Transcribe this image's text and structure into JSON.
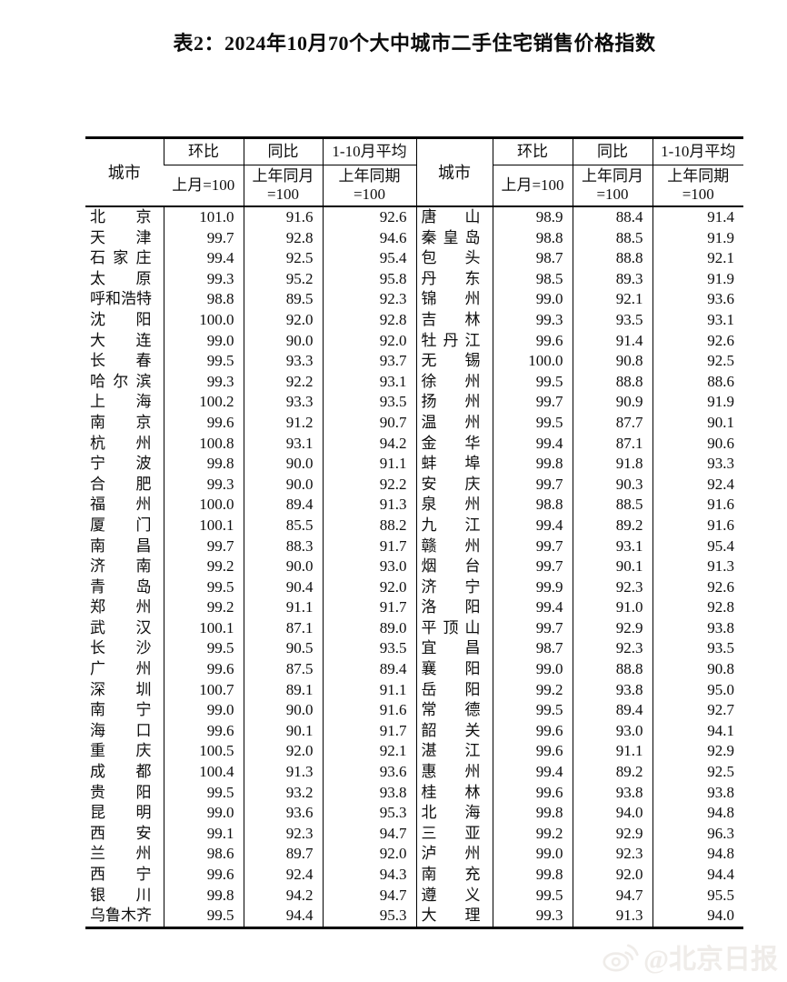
{
  "title": "表2：2024年10月70个大中城市二手住宅销售价格指数",
  "table": {
    "headers": {
      "city": "城市",
      "mom": "环比",
      "mom_base": "上月=100",
      "yoy": "同比",
      "yoy_base_l1": "上年同月",
      "yoy_base_l2": "=100",
      "avg": "1-10月平均",
      "avg_base_l1": "上年同期",
      "avg_base_l2": "=100"
    },
    "left_rows": [
      [
        "北京",
        "101.0",
        "91.6",
        "92.6"
      ],
      [
        "天津",
        "99.7",
        "92.8",
        "94.6"
      ],
      [
        "石家庄",
        "99.4",
        "92.5",
        "95.4"
      ],
      [
        "太原",
        "99.3",
        "95.2",
        "95.8"
      ],
      [
        "呼和浩特",
        "98.8",
        "89.5",
        "92.3"
      ],
      [
        "沈阳",
        "100.0",
        "92.0",
        "92.8"
      ],
      [
        "大连",
        "99.0",
        "90.0",
        "92.0"
      ],
      [
        "长春",
        "99.5",
        "93.3",
        "93.7"
      ],
      [
        "哈尔滨",
        "99.3",
        "92.2",
        "93.1"
      ],
      [
        "上海",
        "100.2",
        "93.3",
        "93.5"
      ],
      [
        "南京",
        "99.6",
        "91.2",
        "90.7"
      ],
      [
        "杭州",
        "100.8",
        "93.1",
        "94.2"
      ],
      [
        "宁波",
        "99.8",
        "90.0",
        "91.1"
      ],
      [
        "合肥",
        "99.3",
        "90.0",
        "92.2"
      ],
      [
        "福州",
        "100.0",
        "89.4",
        "91.3"
      ],
      [
        "厦门",
        "100.1",
        "85.5",
        "88.2"
      ],
      [
        "南昌",
        "99.7",
        "88.3",
        "91.7"
      ],
      [
        "济南",
        "99.2",
        "90.0",
        "93.0"
      ],
      [
        "青岛",
        "99.5",
        "90.4",
        "92.0"
      ],
      [
        "郑州",
        "99.2",
        "91.1",
        "91.7"
      ],
      [
        "武汉",
        "100.1",
        "87.1",
        "89.0"
      ],
      [
        "长沙",
        "99.5",
        "90.5",
        "93.5"
      ],
      [
        "广州",
        "99.6",
        "87.5",
        "89.4"
      ],
      [
        "深圳",
        "100.7",
        "89.1",
        "91.1"
      ],
      [
        "南宁",
        "99.0",
        "90.0",
        "91.6"
      ],
      [
        "海口",
        "99.6",
        "90.1",
        "91.7"
      ],
      [
        "重庆",
        "100.5",
        "92.0",
        "92.1"
      ],
      [
        "成都",
        "100.4",
        "91.3",
        "93.6"
      ],
      [
        "贵阳",
        "99.5",
        "93.2",
        "93.8"
      ],
      [
        "昆明",
        "99.0",
        "93.6",
        "95.3"
      ],
      [
        "西安",
        "99.1",
        "92.3",
        "94.7"
      ],
      [
        "兰州",
        "98.6",
        "89.7",
        "92.0"
      ],
      [
        "西宁",
        "99.6",
        "92.4",
        "94.3"
      ],
      [
        "银川",
        "99.8",
        "94.2",
        "94.7"
      ],
      [
        "乌鲁木齐",
        "99.5",
        "94.4",
        "95.3"
      ]
    ],
    "right_rows": [
      [
        "唐山",
        "98.9",
        "88.4",
        "91.4"
      ],
      [
        "秦皇岛",
        "98.8",
        "88.5",
        "91.9"
      ],
      [
        "包头",
        "98.7",
        "88.8",
        "92.1"
      ],
      [
        "丹东",
        "98.5",
        "89.3",
        "91.9"
      ],
      [
        "锦州",
        "99.0",
        "92.1",
        "93.6"
      ],
      [
        "吉林",
        "99.3",
        "93.5",
        "93.1"
      ],
      [
        "牡丹江",
        "99.6",
        "91.4",
        "92.6"
      ],
      [
        "无锡",
        "100.0",
        "90.8",
        "92.5"
      ],
      [
        "徐州",
        "99.5",
        "88.8",
        "88.6"
      ],
      [
        "扬州",
        "99.7",
        "90.9",
        "91.9"
      ],
      [
        "温州",
        "99.5",
        "87.7",
        "90.1"
      ],
      [
        "金华",
        "99.4",
        "87.1",
        "90.6"
      ],
      [
        "蚌埠",
        "99.8",
        "91.8",
        "93.3"
      ],
      [
        "安庆",
        "99.7",
        "90.3",
        "92.4"
      ],
      [
        "泉州",
        "98.8",
        "88.5",
        "91.6"
      ],
      [
        "九江",
        "99.4",
        "89.2",
        "91.6"
      ],
      [
        "赣州",
        "99.7",
        "93.1",
        "95.4"
      ],
      [
        "烟台",
        "99.7",
        "90.1",
        "91.3"
      ],
      [
        "济宁",
        "99.9",
        "92.3",
        "92.6"
      ],
      [
        "洛阳",
        "99.4",
        "91.0",
        "92.8"
      ],
      [
        "平顶山",
        "99.7",
        "92.9",
        "93.8"
      ],
      [
        "宜昌",
        "98.7",
        "92.3",
        "93.5"
      ],
      [
        "襄阳",
        "99.0",
        "88.8",
        "90.8"
      ],
      [
        "岳阳",
        "99.2",
        "93.8",
        "95.0"
      ],
      [
        "常德",
        "99.5",
        "89.4",
        "92.7"
      ],
      [
        "韶关",
        "99.6",
        "93.0",
        "94.1"
      ],
      [
        "湛江",
        "99.6",
        "91.1",
        "92.9"
      ],
      [
        "惠州",
        "99.4",
        "89.2",
        "92.5"
      ],
      [
        "桂林",
        "99.6",
        "93.8",
        "93.8"
      ],
      [
        "北海",
        "99.8",
        "94.0",
        "94.8"
      ],
      [
        "三亚",
        "99.2",
        "92.9",
        "96.3"
      ],
      [
        "泸州",
        "99.0",
        "92.3",
        "94.8"
      ],
      [
        "南充",
        "99.8",
        "92.0",
        "94.4"
      ],
      [
        "遵义",
        "99.5",
        "94.7",
        "95.5"
      ],
      [
        "大理",
        "99.3",
        "91.3",
        "94.0"
      ]
    ]
  },
  "watermark": {
    "icon": "weibo-icon",
    "source_label": "@北京日报"
  },
  "colors": {
    "text": "#111111",
    "border": "#000000",
    "watermark": "#efece9"
  }
}
